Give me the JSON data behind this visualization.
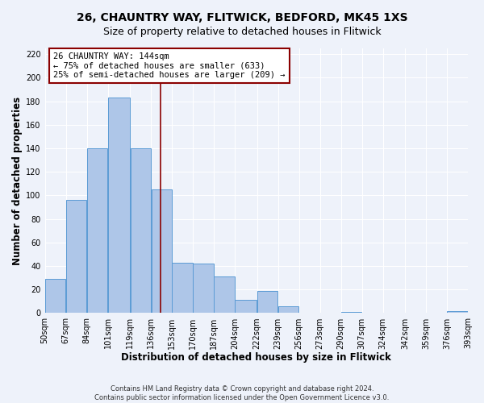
{
  "title": "26, CHAUNTRY WAY, FLITWICK, BEDFORD, MK45 1XS",
  "subtitle": "Size of property relative to detached houses in Flitwick",
  "xlabel": "Distribution of detached houses by size in Flitwick",
  "ylabel": "Number of detached properties",
  "footer_lines": [
    "Contains HM Land Registry data © Crown copyright and database right 2024.",
    "Contains public sector information licensed under the Open Government Licence v3.0."
  ],
  "bar_edges": [
    50,
    67,
    84,
    101,
    119,
    136,
    153,
    170,
    187,
    204,
    222,
    239,
    256,
    273,
    290,
    307,
    324,
    342,
    359,
    376,
    393
  ],
  "bar_heights": [
    29,
    96,
    140,
    183,
    140,
    105,
    43,
    42,
    31,
    11,
    19,
    6,
    0,
    0,
    1,
    0,
    0,
    0,
    0,
    2
  ],
  "bar_color": "#aec6e8",
  "bar_edgecolor": "#5b9bd5",
  "property_value": 144,
  "vline_color": "#8b0000",
  "annotation_line1": "26 CHAUNTRY WAY: 144sqm",
  "annotation_line2": "← 75% of detached houses are smaller (633)",
  "annotation_line3": "25% of semi-detached houses are larger (209) →",
  "annotation_box_color": "#ffffff",
  "annotation_box_edgecolor": "#8b0000",
  "ylim": [
    0,
    225
  ],
  "yticks": [
    0,
    20,
    40,
    60,
    80,
    100,
    120,
    140,
    160,
    180,
    200,
    220
  ],
  "bar_labels": [
    "50sqm",
    "67sqm",
    "84sqm",
    "101sqm",
    "119sqm",
    "136sqm",
    "153sqm",
    "170sqm",
    "187sqm",
    "204sqm",
    "222sqm",
    "239sqm",
    "256sqm",
    "273sqm",
    "290sqm",
    "307sqm",
    "324sqm",
    "342sqm",
    "359sqm",
    "376sqm",
    "393sqm"
  ],
  "bg_color": "#eef2fa",
  "grid_color": "#ffffff",
  "title_fontsize": 10,
  "subtitle_fontsize": 9,
  "label_fontsize": 8.5,
  "tick_fontsize": 7,
  "annot_fontsize": 7.5,
  "footer_fontsize": 6
}
